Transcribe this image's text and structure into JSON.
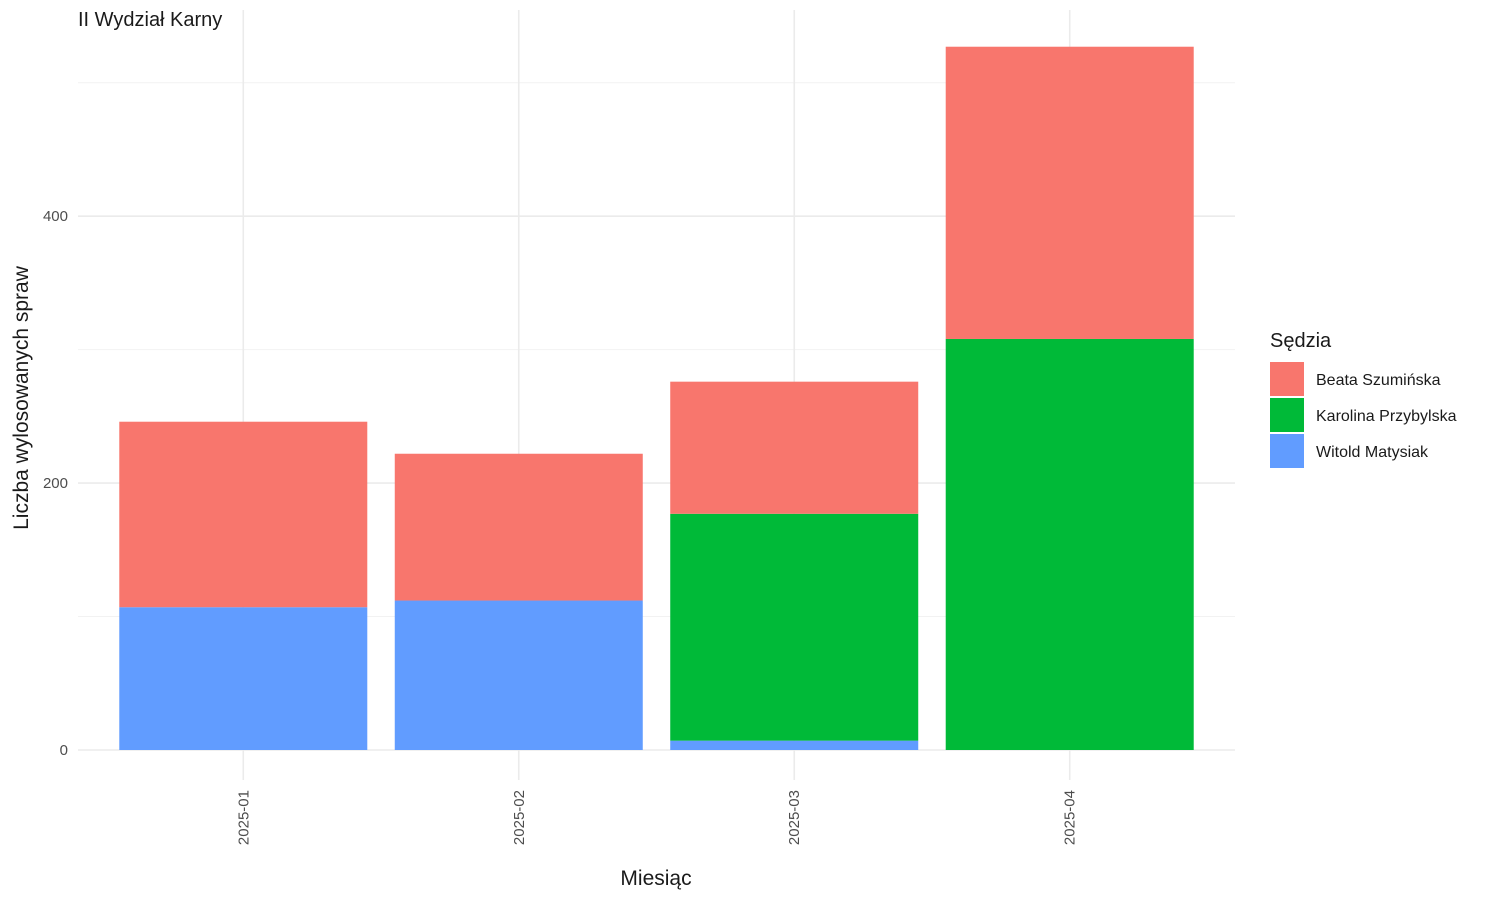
{
  "chart_data": {
    "type": "bar",
    "stacked": true,
    "title": "II Wydział Karny",
    "xlabel": "Miesiąc",
    "ylabel": "Liczba wylosowanych spraw",
    "categories": [
      "2025-01",
      "2025-02",
      "2025-03",
      "2025-04"
    ],
    "ylim": [
      0,
      530
    ],
    "yticks": [
      0,
      200,
      400
    ],
    "yticks_labels": [
      "0",
      "200",
      "400"
    ],
    "grid": true,
    "legend": {
      "title": "Sędzia",
      "placement": "right",
      "order": [
        "Beata Szumińska",
        "Karolina Przybylska",
        "Witold Matysiak"
      ]
    },
    "series": [
      {
        "name": "Witold Matysiak",
        "color": "#619CFF",
        "values": [
          107,
          112,
          7,
          0
        ]
      },
      {
        "name": "Karolina Przybylska",
        "color": "#00BA38",
        "values": [
          0,
          0,
          170,
          308
        ]
      },
      {
        "name": "Beata Szumińska",
        "color": "#F8766D",
        "values": [
          139,
          110,
          99,
          219
        ]
      }
    ]
  }
}
